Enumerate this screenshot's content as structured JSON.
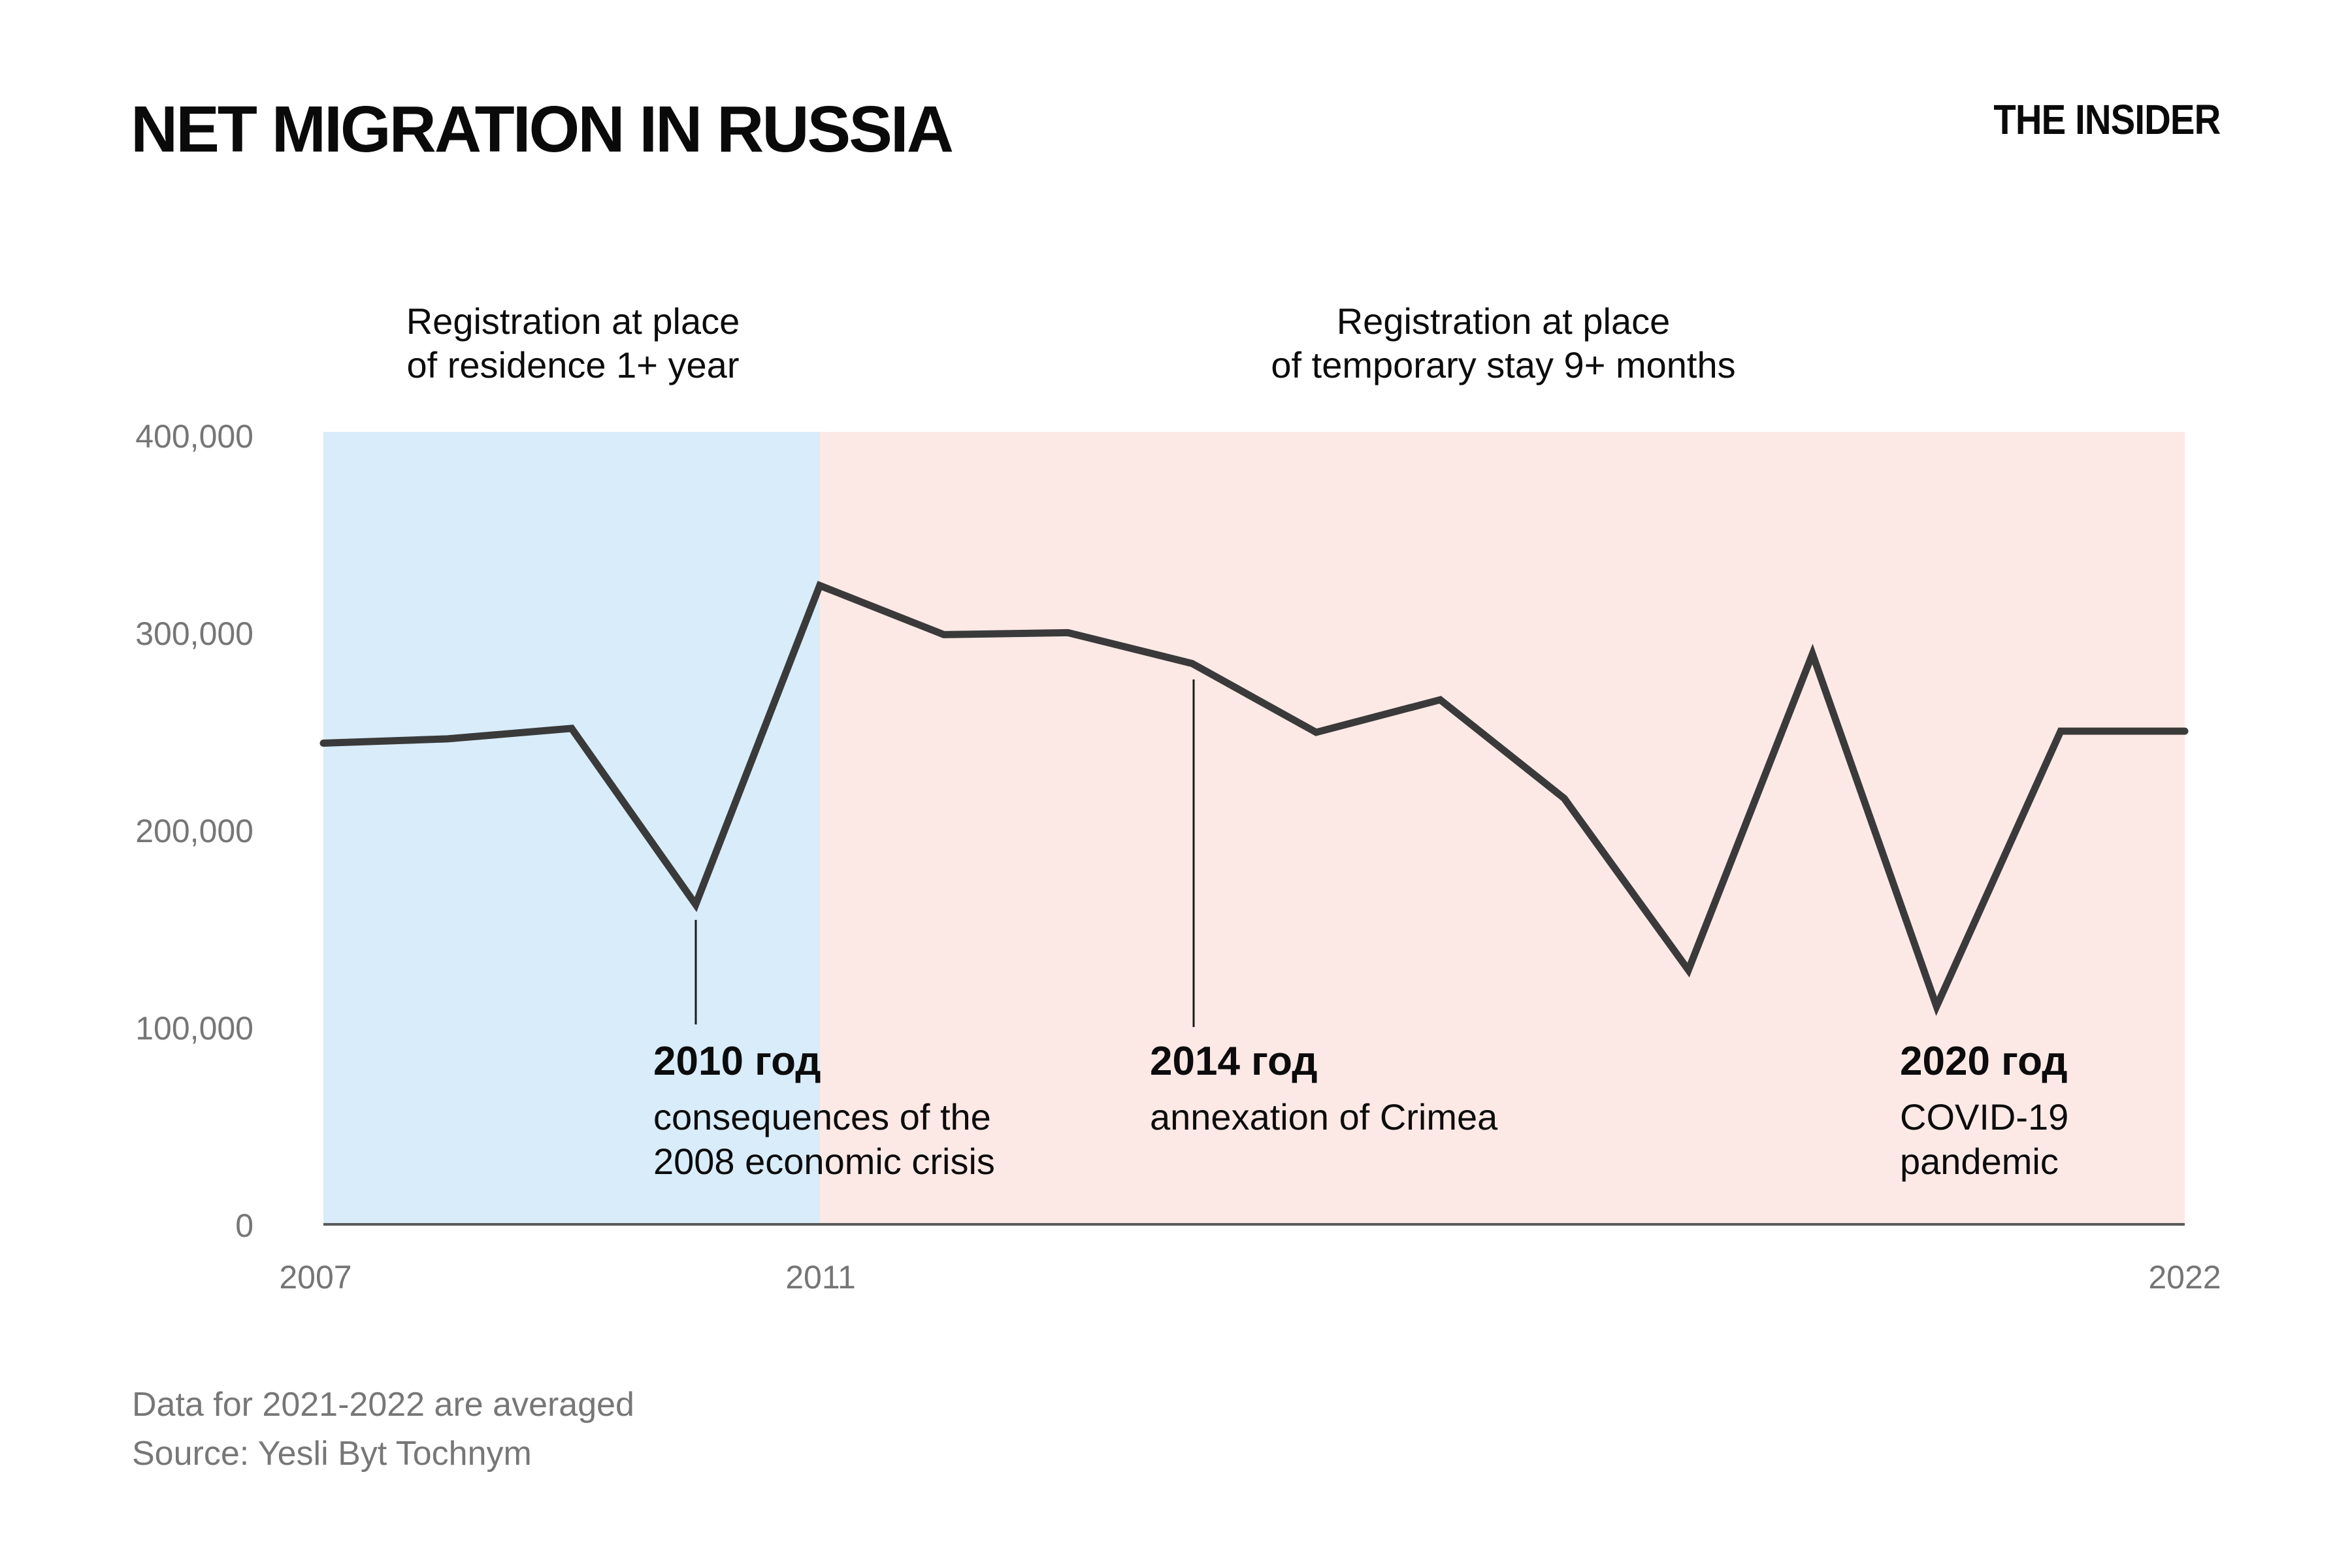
{
  "title": "NET MIGRATION IN RUSSIA",
  "logo": "THE INSIDER",
  "region_headers": {
    "residence": {
      "line1": "Registration at place",
      "line2": "of residence 1+ year"
    },
    "temporary": {
      "line1": "Registration at place",
      "line2": "of temporary stay 9+ months"
    }
  },
  "y_axis": {
    "ticks": [
      "400,000",
      "300,000",
      "200,000",
      "100,000",
      "0"
    ]
  },
  "x_axis": {
    "ticks": [
      "2007",
      "2011",
      "2022"
    ]
  },
  "annotations": [
    {
      "year": "2010 год",
      "lines": [
        "consequences of the",
        "2008 economic crisis"
      ]
    },
    {
      "year": "2014 год",
      "lines": [
        "annexation of Crimea"
      ]
    },
    {
      "year": "2020 год",
      "lines": [
        "COVID-19",
        "pandemic"
      ]
    }
  ],
  "footnotes": [
    "Data for 2021-2022 are averaged",
    "Source: Yesli Byt Tochnym"
  ],
  "colors": {
    "period_residence_bg": "#d8ecfa",
    "period_temporary_bg": "#fce9e5",
    "line": "#3a3a3a",
    "axis": "#595a5c",
    "tick_text": "#767676",
    "footnote_text": "#777777",
    "text": "#0c0c0c"
  },
  "chart_data": {
    "type": "line",
    "title": "NET MIGRATION IN RUSSIA",
    "xlabel": "",
    "ylabel": "",
    "x": [
      2007,
      2008,
      2009,
      2010,
      2011,
      2012,
      2013,
      2014,
      2015,
      2016,
      2017,
      2018,
      2019,
      2020,
      2021,
      2022
    ],
    "values": [
      239900,
      242100,
      247400,
      158100,
      319800,
      294900,
      295900,
      280300,
      245400,
      261900,
      211900,
      124900,
      285100,
      106500,
      246000,
      246000
    ],
    "ylim": [
      0,
      400000
    ],
    "grid": false,
    "legend_position": "none",
    "periods": [
      {
        "label": "Registration at place of residence 1+ year",
        "from": 2007,
        "to": 2011
      },
      {
        "label": "Registration at place of temporary stay 9+ months",
        "from": 2011,
        "to": 2022
      }
    ],
    "event_markers": [
      {
        "x": 2010,
        "label": "2010 год — consequences of the 2008 economic crisis"
      },
      {
        "x": 2014,
        "label": "2014 год — annexation of Crimea"
      },
      {
        "x": 2020,
        "label": "2020 год — COVID-19 pandemic"
      }
    ]
  }
}
